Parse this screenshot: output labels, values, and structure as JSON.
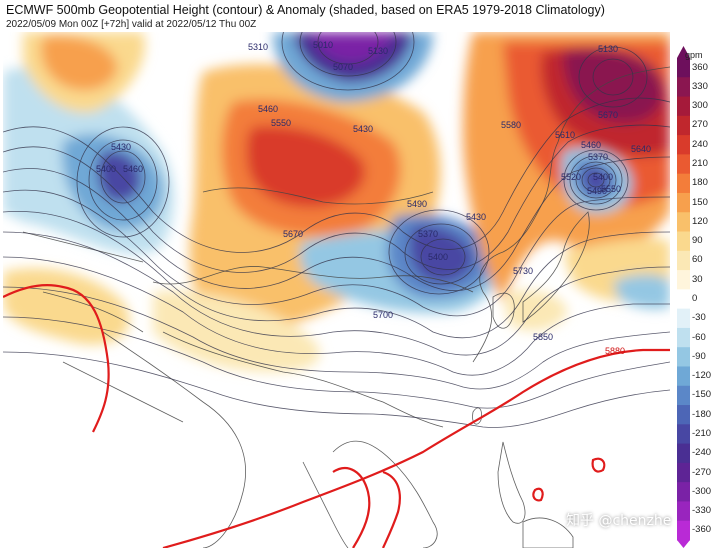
{
  "header": {
    "title": "ECMWF 500mb Geopotential Height (contour) & Anomaly (shaded, based on ERA5 1979-2018 Climatology)",
    "subtitle": "2022/05/09 Mon 00Z [+72h] valid at 2022/05/12 Thu 00Z"
  },
  "colorbar": {
    "unit": "gpm",
    "ticks": [
      "360",
      "330",
      "300",
      "270",
      "240",
      "210",
      "180",
      "150",
      "120",
      "90",
      "60",
      "30",
      "0",
      "-30",
      "-60",
      "-90",
      "-120",
      "-150",
      "-180",
      "-210",
      "-240",
      "-270",
      "-300",
      "-330",
      "-360"
    ],
    "colors": [
      "#6d0f5c",
      "#8a1650",
      "#a51a3a",
      "#c0272d",
      "#d93b2b",
      "#ea5a31",
      "#f37d3a",
      "#f7a04d",
      "#f9c06a",
      "#fad98e",
      "#fbe8b5",
      "#fff5dc",
      "#ffffff",
      "#e2f1f8",
      "#bfe0ef",
      "#94c7e3",
      "#6fa8d6",
      "#5b87c8",
      "#4d66b6",
      "#4847a3",
      "#4a2f93",
      "#5e2495",
      "#7a22a6",
      "#9925be",
      "#b92ad6"
    ]
  },
  "contour_labels": [
    {
      "text": "5310"
    },
    {
      "text": "5010"
    },
    {
      "text": "5070"
    },
    {
      "text": "5130"
    },
    {
      "text": "5460"
    },
    {
      "text": "5430"
    },
    {
      "text": "5550"
    },
    {
      "text": "5430"
    },
    {
      "text": "5400"
    },
    {
      "text": "5460"
    },
    {
      "text": "5670"
    },
    {
      "text": "5490"
    },
    {
      "text": "5370"
    },
    {
      "text": "5400"
    },
    {
      "text": "5430"
    },
    {
      "text": "5700"
    },
    {
      "text": "5730"
    },
    {
      "text": "5850"
    },
    {
      "text": "5580"
    },
    {
      "text": "5670"
    },
    {
      "text": "5610"
    },
    {
      "text": "5460"
    },
    {
      "text": "5370"
    },
    {
      "text": "5400"
    },
    {
      "text": "5490"
    },
    {
      "text": "5520"
    },
    {
      "text": "5550"
    },
    {
      "text": "5640"
    },
    {
      "text": "5130"
    }
  ],
  "red_contour_label": "5880",
  "watermark": "知乎 @chenzhe"
}
